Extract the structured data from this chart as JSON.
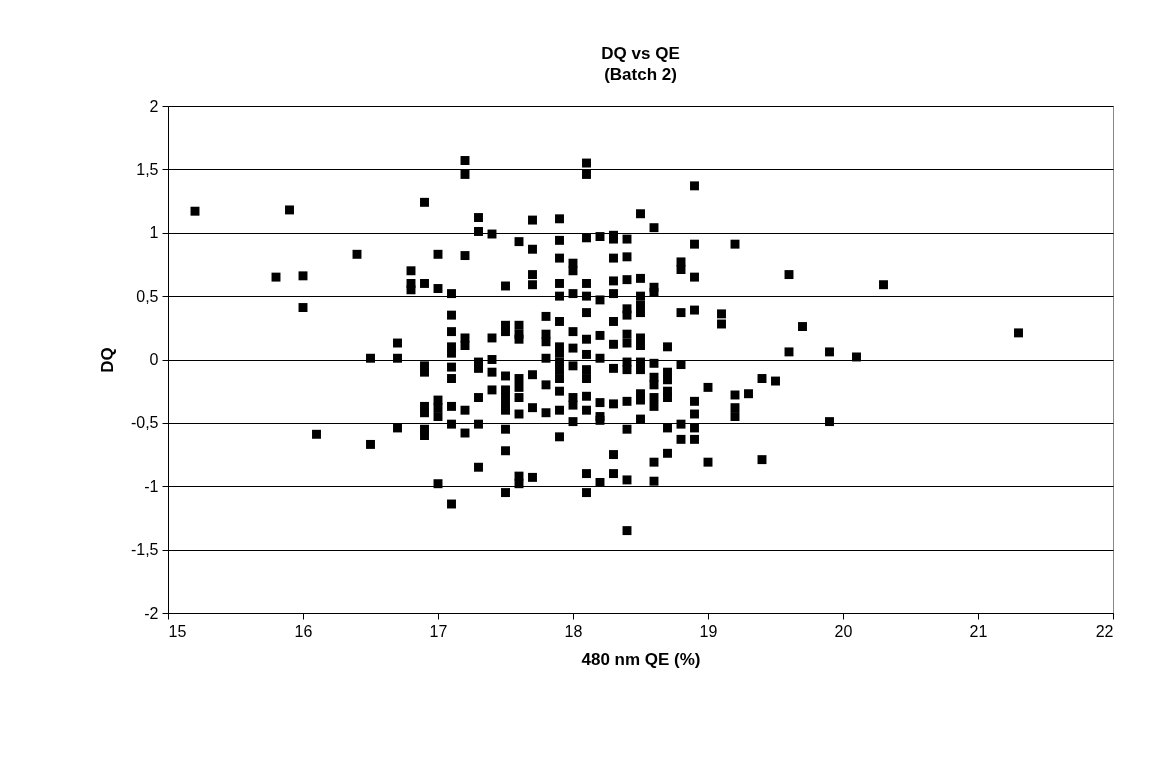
{
  "chart_data": {
    "type": "scatter",
    "title": "DQ vs QE",
    "subtitle": "(Batch 2)",
    "xlabel": "480 nm QE (%)",
    "ylabel": "DQ",
    "marker": "square",
    "grid": "y",
    "xlim": [
      15,
      22
    ],
    "xticks": [
      15,
      16,
      17,
      18,
      19,
      20,
      21,
      22
    ],
    "ylim": [
      -2,
      2
    ],
    "yticks": [
      -2,
      {
        "value": -1.5,
        "label": "-1,5"
      },
      -1,
      {
        "value": -0.5,
        "label": "-0,5"
      },
      0,
      {
        "value": 0.5,
        "label": "0,5"
      },
      1,
      {
        "value": 1.5,
        "label": "1,5"
      },
      2
    ],
    "series": [
      {
        "color": "#000000",
        "x": [
          15.2,
          15.8,
          15.9,
          16.0,
          16.0,
          16.1,
          16.4,
          16.5,
          16.5,
          16.7,
          16.7,
          16.7,
          16.8,
          16.8,
          16.8,
          16.9,
          16.9,
          16.9,
          16.9,
          16.9,
          16.9,
          16.9,
          16.9,
          17.0,
          17.0,
          17.0,
          17.0,
          17.0,
          17.0,
          17.1,
          17.1,
          17.1,
          17.1,
          17.1,
          17.1,
          17.1,
          17.1,
          17.1,
          17.1,
          17.2,
          17.2,
          17.2,
          17.2,
          17.2,
          17.2,
          17.2,
          17.3,
          17.3,
          17.3,
          17.3,
          17.3,
          17.3,
          17.3,
          17.4,
          17.4,
          17.4,
          17.4,
          17.4,
          17.5,
          17.5,
          17.5,
          17.5,
          17.5,
          17.5,
          17.5,
          17.5,
          17.5,
          17.5,
          17.5,
          17.6,
          17.6,
          17.6,
          17.6,
          17.6,
          17.6,
          17.6,
          17.6,
          17.6,
          17.6,
          17.7,
          17.7,
          17.7,
          17.7,
          17.7,
          17.7,
          17.7,
          17.8,
          17.8,
          17.8,
          17.8,
          17.8,
          17.8,
          17.9,
          17.9,
          17.9,
          17.9,
          17.9,
          17.9,
          17.9,
          17.9,
          17.9,
          17.9,
          17.9,
          17.9,
          17.9,
          17.9,
          18.0,
          18.0,
          18.0,
          18.0,
          18.0,
          18.0,
          18.0,
          18.0,
          18.0,
          18.1,
          18.1,
          18.1,
          18.1,
          18.1,
          18.1,
          18.1,
          18.1,
          18.1,
          18.1,
          18.1,
          18.1,
          18.1,
          18.1,
          18.2,
          18.2,
          18.2,
          18.2,
          18.2,
          18.2,
          18.2,
          18.2,
          18.3,
          18.3,
          18.3,
          18.3,
          18.3,
          18.3,
          18.3,
          18.3,
          18.3,
          18.3,
          18.3,
          18.4,
          18.4,
          18.4,
          18.4,
          18.4,
          18.4,
          18.4,
          18.4,
          18.4,
          18.4,
          18.4,
          18.4,
          18.4,
          18.5,
          18.5,
          18.5,
          18.5,
          18.5,
          18.5,
          18.5,
          18.5,
          18.5,
          18.5,
          18.5,
          18.5,
          18.6,
          18.6,
          18.6,
          18.6,
          18.6,
          18.6,
          18.6,
          18.6,
          18.6,
          18.6,
          18.7,
          18.7,
          18.7,
          18.7,
          18.7,
          18.7,
          18.7,
          18.8,
          18.8,
          18.8,
          18.8,
          18.8,
          18.8,
          18.9,
          18.9,
          18.9,
          18.9,
          18.9,
          18.9,
          18.9,
          18.9,
          19.0,
          19.0,
          19.1,
          19.1,
          19.2,
          19.2,
          19.2,
          19.2,
          19.3,
          19.4,
          19.4,
          19.5,
          19.6,
          19.6,
          19.7,
          19.9,
          19.9,
          20.1,
          20.3,
          21.3
        ],
        "values": [
          1.17,
          0.65,
          1.18,
          0.66,
          0.41,
          -0.59,
          0.83,
          0.01,
          -0.67,
          0.13,
          0.01,
          -0.54,
          0.7,
          0.6,
          0.55,
          1.24,
          0.6,
          -0.05,
          -0.1,
          -0.37,
          -0.42,
          -0.55,
          -0.6,
          0.83,
          0.56,
          -0.32,
          -0.38,
          -0.45,
          -0.98,
          0.52,
          0.35,
          0.22,
          0.1,
          0.05,
          -0.06,
          -0.15,
          -0.37,
          -0.51,
          -1.14,
          1.57,
          1.46,
          0.82,
          0.17,
          0.11,
          -0.4,
          -0.58,
          1.12,
          1.01,
          -0.02,
          -0.07,
          -0.3,
          -0.51,
          -0.85,
          0.99,
          0.17,
          0,
          -0.1,
          -0.24,
          0.58,
          0.27,
          0.22,
          -0.13,
          -0.24,
          -0.3,
          -0.37,
          -0.4,
          -0.55,
          -0.72,
          -1.05,
          0.93,
          0.27,
          0.2,
          0.16,
          -0.15,
          -0.22,
          -0.3,
          -0.43,
          -0.92,
          -0.98,
          1.1,
          0.87,
          0.67,
          0.59,
          -0.12,
          -0.38,
          -0.93,
          0.34,
          0.2,
          0.14,
          0.01,
          -0.2,
          -0.42,
          1.11,
          0.94,
          0.8,
          0.6,
          0.5,
          0.3,
          0.1,
          0.05,
          -0.02,
          -0.08,
          -0.15,
          -0.25,
          -0.4,
          -0.61,
          0.76,
          0.7,
          0.52,
          0.22,
          0.09,
          -0.05,
          -0.3,
          -0.36,
          -0.49,
          1.55,
          1.46,
          0.96,
          0.6,
          0.5,
          0.37,
          0.16,
          0.04,
          -0.08,
          -0.15,
          -0.29,
          -0.4,
          -0.9,
          -1.05,
          0.97,
          0.47,
          0.19,
          0.01,
          -0.34,
          -0.45,
          -0.48,
          -0.97,
          0.98,
          0.95,
          0.8,
          0.62,
          0.52,
          0.3,
          0.12,
          -0.07,
          -0.35,
          -0.75,
          -0.9,
          0.95,
          0.81,
          0.63,
          0.4,
          0.35,
          0.2,
          0.13,
          -0.02,
          -0.08,
          -0.33,
          -0.55,
          -0.95,
          -1.35,
          1.15,
          0.64,
          0.5,
          0.43,
          0.37,
          0.17,
          0.11,
          -0.02,
          -0.08,
          -0.27,
          -0.32,
          -0.47,
          1.04,
          0.57,
          0.53,
          -0.03,
          -0.14,
          -0.2,
          -0.3,
          -0.37,
          -0.81,
          -0.96,
          0.1,
          -0.1,
          -0.16,
          -0.25,
          -0.3,
          -0.54,
          -0.74,
          0.77,
          0.71,
          0.37,
          -0.04,
          -0.51,
          -0.63,
          1.37,
          0.91,
          0.65,
          0.39,
          -0.33,
          -0.43,
          -0.54,
          -0.63,
          -0.22,
          -0.81,
          0.36,
          0.28,
          0.91,
          -0.28,
          -0.38,
          -0.45,
          -0.27,
          -0.15,
          -0.79,
          -0.17,
          0.67,
          0.06,
          0.26,
          0.06,
          -0.49,
          0.02,
          0.59,
          0.21
        ]
      }
    ]
  }
}
